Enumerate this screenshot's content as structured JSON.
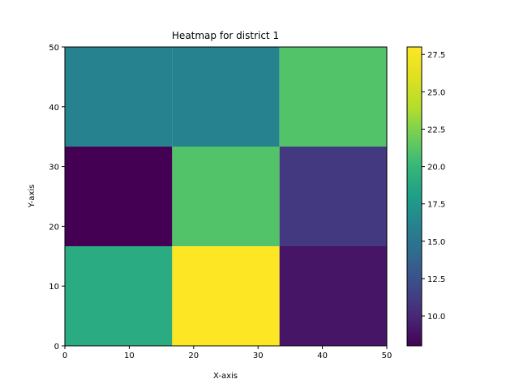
{
  "chart_data": {
    "type": "heatmap",
    "title": "Heatmap for district 1",
    "xlabel": "X-axis",
    "ylabel": "Y-axis",
    "xlim": [
      0,
      50
    ],
    "ylim": [
      0,
      50
    ],
    "xticks": [
      0,
      10,
      20,
      30,
      40,
      50
    ],
    "yticks": [
      0,
      10,
      20,
      30,
      40,
      50
    ],
    "x_edges": [
      0,
      16.667,
      33.333,
      50
    ],
    "y_edges": [
      0,
      16.667,
      33.333,
      50
    ],
    "values": [
      [
        19,
        28,
        9
      ],
      [
        8,
        21,
        11
      ],
      [
        16,
        16,
        21
      ]
    ],
    "colormap": "viridis",
    "clim": [
      8,
      28
    ],
    "colorbar_ticks": [
      {
        "value": 10.0,
        "label": "10.0"
      },
      {
        "value": 12.5,
        "label": "12.5"
      },
      {
        "value": 15.0,
        "label": "15.0"
      },
      {
        "value": 17.5,
        "label": "17.5"
      },
      {
        "value": 20.0,
        "label": "20.0"
      },
      {
        "value": 22.5,
        "label": "22.5"
      },
      {
        "value": 25.0,
        "label": "25.0"
      },
      {
        "value": 27.5,
        "label": "27.5"
      }
    ],
    "grid": false
  }
}
